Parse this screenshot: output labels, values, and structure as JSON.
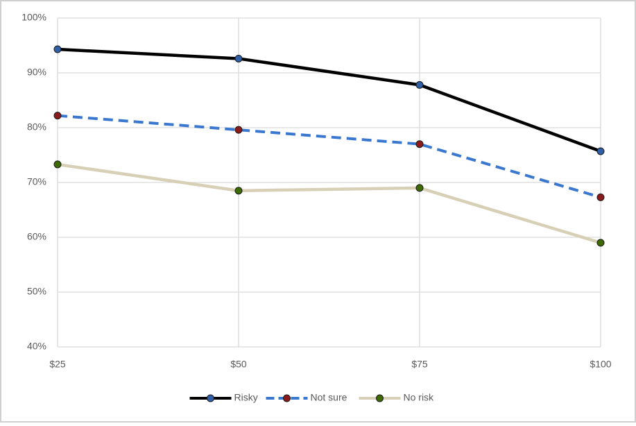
{
  "chart_data": {
    "type": "line",
    "categories": [
      "$25",
      "$50",
      "$75",
      "$100"
    ],
    "series": [
      {
        "name": "Risky",
        "color": "#000000",
        "marker_color": "#2f5fa6",
        "dash": false,
        "values": [
          94.3,
          92.6,
          87.8,
          75.7
        ]
      },
      {
        "name": "Not sure",
        "color": "#3a78d0",
        "marker_color": "#8b1a1a",
        "dash": true,
        "values": [
          82.2,
          79.6,
          77,
          67.3
        ]
      },
      {
        "name": "No risk",
        "color": "#d8d0b6",
        "marker_color": "#3d6b00",
        "dash": false,
        "values": [
          73.3,
          68.5,
          69,
          59
        ]
      }
    ],
    "ylim": [
      40,
      100
    ],
    "yticks": [
      {
        "value": 40,
        "label": "40%"
      },
      {
        "value": 50,
        "label": "50%"
      },
      {
        "value": 60,
        "label": "60%"
      },
      {
        "value": 70,
        "label": "70%"
      },
      {
        "value": 80,
        "label": "80%"
      },
      {
        "value": 90,
        "label": "90%"
      },
      {
        "value": 100,
        "label": "100%"
      }
    ],
    "grid": true,
    "legend": "bottom"
  }
}
